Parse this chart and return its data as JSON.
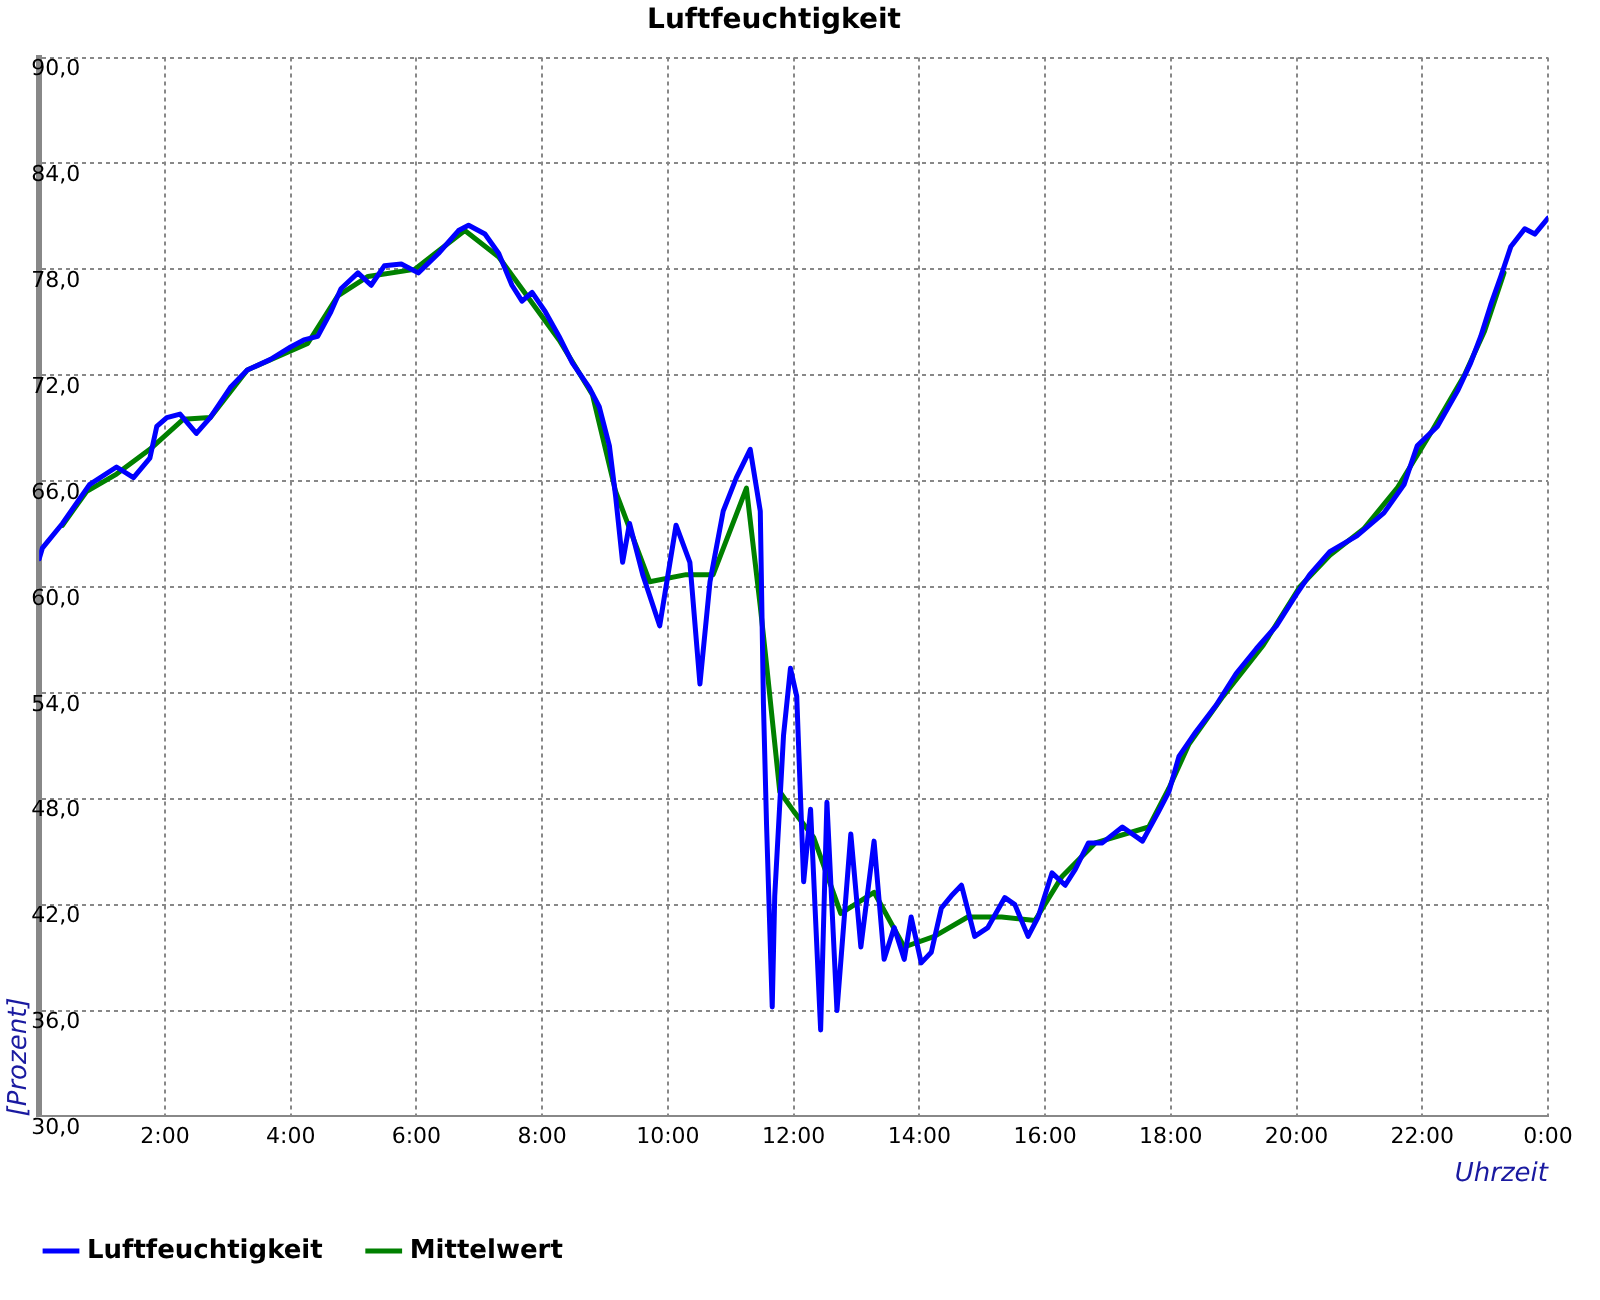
{
  "chart_data": {
    "type": "line",
    "title": "Luftfeuchtigkeit",
    "xlabel": "Uhrzeit",
    "ylabel": "[Prozent]",
    "xlim": [
      0,
      24
    ],
    "xticks": [
      {
        "value": 0,
        "label": null
      },
      {
        "value": 2,
        "label": "2:00"
      },
      {
        "value": 4,
        "label": "4:00"
      },
      {
        "value": 6,
        "label": "6:00"
      },
      {
        "value": 8,
        "label": "8:00"
      },
      {
        "value": 10,
        "label": "10:00"
      },
      {
        "value": 12,
        "label": "12:00"
      },
      {
        "value": 14,
        "label": "14:00"
      },
      {
        "value": 16,
        "label": "16:00"
      },
      {
        "value": 18,
        "label": "18:00"
      },
      {
        "value": 20,
        "label": "20:00"
      },
      {
        "value": 22,
        "label": "22:00"
      },
      {
        "value": 24,
        "label": "0:00"
      }
    ],
    "ylim": [
      30,
      90
    ],
    "yticks": [
      {
        "value": 30,
        "label": "30,0"
      },
      {
        "value": 36,
        "label": "36,0"
      },
      {
        "value": 42,
        "label": "42,0"
      },
      {
        "value": 48,
        "label": "48,0"
      },
      {
        "value": 54,
        "label": "54,0"
      },
      {
        "value": 60,
        "label": "60,0"
      },
      {
        "value": 66,
        "label": "66,0"
      },
      {
        "value": 72,
        "label": "72,0"
      },
      {
        "value": 78,
        "label": "78,0"
      },
      {
        "value": 84,
        "label": "84,0"
      },
      {
        "value": 90,
        "label": "90,0"
      }
    ],
    "grid": true,
    "legend": "bottom left",
    "marker": "none",
    "line_style": "solid",
    "series": [
      {
        "name": "Luftfeuchtigkeit",
        "color": "#0000ff",
        "x": [
          0,
          0.05,
          0.37,
          0.8,
          1.23,
          1.5,
          1.76,
          1.87,
          2.03,
          2.24,
          2.5,
          2.72,
          3.04,
          3.31,
          3.68,
          4.0,
          4.21,
          4.43,
          4.64,
          4.8,
          5.07,
          5.28,
          5.49,
          5.76,
          6.03,
          6.35,
          6.67,
          6.83,
          7.09,
          7.31,
          7.52,
          7.68,
          7.84,
          8.05,
          8.27,
          8.48,
          8.75,
          8.91,
          9.07,
          9.17,
          9.28,
          9.39,
          9.6,
          9.87,
          9.97,
          10.13,
          10.35,
          10.51,
          10.67,
          10.88,
          11.09,
          11.31,
          11.47,
          11.52,
          11.57,
          11.66,
          11.7,
          11.84,
          11.95,
          12.05,
          12.16,
          12.27,
          12.43,
          12.53,
          12.69,
          12.91,
          13.07,
          13.28,
          13.44,
          13.6,
          13.76,
          13.87,
          14.03,
          14.19,
          14.35,
          14.51,
          14.67,
          14.88,
          15.09,
          15.36,
          15.52,
          15.73,
          15.89,
          16.11,
          16.32,
          16.48,
          16.69,
          16.91,
          17.23,
          17.55,
          17.81,
          17.97,
          18.13,
          18.4,
          18.72,
          19.04,
          19.36,
          19.68,
          20.0,
          20.21,
          20.53,
          20.96,
          21.39,
          21.71,
          21.92,
          22.24,
          22.56,
          22.77,
          22.93,
          23.09,
          23.25,
          23.41,
          23.63,
          23.79,
          24.0
        ],
        "values": [
          61.6,
          62.2,
          63.6,
          65.8,
          66.8,
          66.2,
          67.3,
          69.1,
          69.6,
          69.8,
          68.7,
          69.6,
          71.3,
          72.3,
          72.9,
          73.6,
          74.0,
          74.2,
          75.6,
          76.9,
          77.8,
          77.1,
          78.2,
          78.3,
          77.8,
          78.9,
          80.2,
          80.5,
          80.0,
          78.9,
          77.1,
          76.2,
          76.7,
          75.6,
          74.2,
          72.7,
          71.3,
          70.2,
          68.0,
          65.1,
          61.4,
          63.6,
          60.7,
          57.8,
          60.0,
          63.5,
          61.4,
          54.5,
          60.3,
          64.3,
          66.2,
          67.8,
          64.3,
          53.4,
          46.5,
          36.2,
          42.5,
          51.6,
          55.4,
          53.8,
          43.3,
          47.4,
          34.9,
          47.8,
          36.0,
          46.0,
          39.6,
          45.6,
          38.9,
          40.7,
          38.9,
          41.3,
          38.7,
          39.3,
          41.8,
          42.5,
          43.1,
          40.2,
          40.7,
          42.4,
          42.0,
          40.2,
          41.3,
          43.8,
          43.1,
          44.0,
          45.5,
          45.5,
          46.4,
          45.6,
          47.3,
          48.4,
          50.4,
          51.8,
          53.3,
          55.1,
          56.5,
          57.8,
          59.6,
          60.7,
          62.0,
          62.9,
          64.2,
          65.8,
          68.0,
          69.1,
          71.1,
          72.7,
          74.2,
          76.0,
          77.6,
          79.3,
          80.3,
          80.0,
          80.9
        ]
      },
      {
        "name": "Mittelwert",
        "color": "#008000",
        "x": [
          0.37,
          0.75,
          1.23,
          1.76,
          2.29,
          2.72,
          3.31,
          4.27,
          4.75,
          5.23,
          5.97,
          6.77,
          7.31,
          8.27,
          8.8,
          9.17,
          9.71,
          10.29,
          10.72,
          11.25,
          11.47,
          11.57,
          11.78,
          12.0,
          12.32,
          12.75,
          13.28,
          13.76,
          14.24,
          14.77,
          15.31,
          15.84,
          16.27,
          16.8,
          17.65,
          17.97,
          18.29,
          18.83,
          19.47,
          20.05,
          20.53,
          21.07,
          21.6,
          22.13,
          22.67,
          22.99,
          23.3
        ],
        "values": [
          63.5,
          65.4,
          66.4,
          67.8,
          69.5,
          69.6,
          72.3,
          73.8,
          76.5,
          77.6,
          78.0,
          80.2,
          78.7,
          74.0,
          70.9,
          65.4,
          60.3,
          60.7,
          60.7,
          65.6,
          58.9,
          55.6,
          48.4,
          47.3,
          45.8,
          41.5,
          42.7,
          39.6,
          40.2,
          41.3,
          41.3,
          41.1,
          43.6,
          45.5,
          46.4,
          48.6,
          51.1,
          53.8,
          56.7,
          60.0,
          61.8,
          63.3,
          65.6,
          68.7,
          72.0,
          74.5,
          77.8
        ]
      }
    ]
  }
}
